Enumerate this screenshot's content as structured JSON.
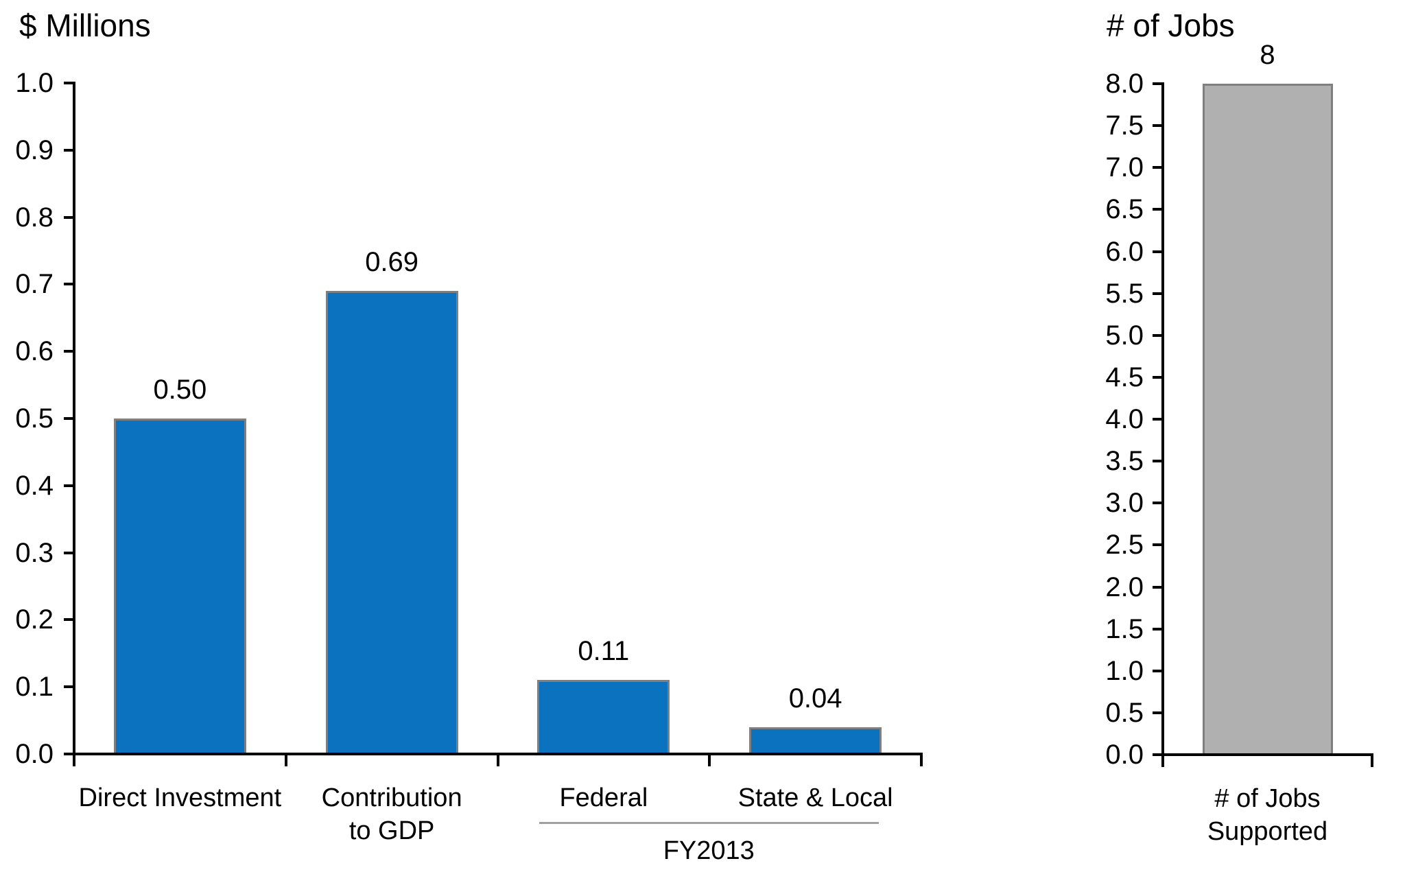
{
  "figure": {
    "background": "#FFFFFF"
  },
  "chart_data": [
    {
      "type": "bar",
      "title": "$ Millions",
      "categories": [
        [
          "Direct Investment"
        ],
        [
          "Contribution",
          "to GDP"
        ],
        [
          "Federal"
        ],
        [
          "State & Local"
        ]
      ],
      "values": [
        0.5,
        0.69,
        0.11,
        0.04
      ],
      "value_labels": [
        "0.50",
        "0.69",
        "0.11",
        "0.04"
      ],
      "ylim": [
        0.0,
        1.0
      ],
      "ytick_labels": [
        "0.0",
        "0.1",
        "0.2",
        "0.3",
        "0.4",
        "0.5",
        "0.6",
        "0.7",
        "0.8",
        "0.9",
        "1.0"
      ],
      "grid": false,
      "legend": false,
      "bar_color": "#0B72C0",
      "bar_border_color": "#7F7F7F",
      "axis_color": "#000000",
      "text_color": "#000000",
      "group_annotation": {
        "label": "FY2013",
        "spans_categories": [
          "Federal",
          "State & Local"
        ],
        "line_color": "#A0A0A0"
      }
    },
    {
      "type": "bar",
      "title": "# of Jobs",
      "categories": [
        [
          "# of Jobs",
          "Supported"
        ]
      ],
      "values": [
        8
      ],
      "value_labels": [
        "8"
      ],
      "ylim": [
        0.0,
        8.0
      ],
      "ytick_labels": [
        "0.0",
        "0.5",
        "1.0",
        "1.5",
        "2.0",
        "2.5",
        "3.0",
        "3.5",
        "4.0",
        "4.5",
        "5.0",
        "5.5",
        "6.0",
        "6.5",
        "7.0",
        "7.5",
        "8.0"
      ],
      "grid": false,
      "legend": false,
      "bar_color": "#B0B0B0",
      "bar_border_color": "#7F7F7F",
      "axis_color": "#000000",
      "text_color": "#000000"
    }
  ]
}
